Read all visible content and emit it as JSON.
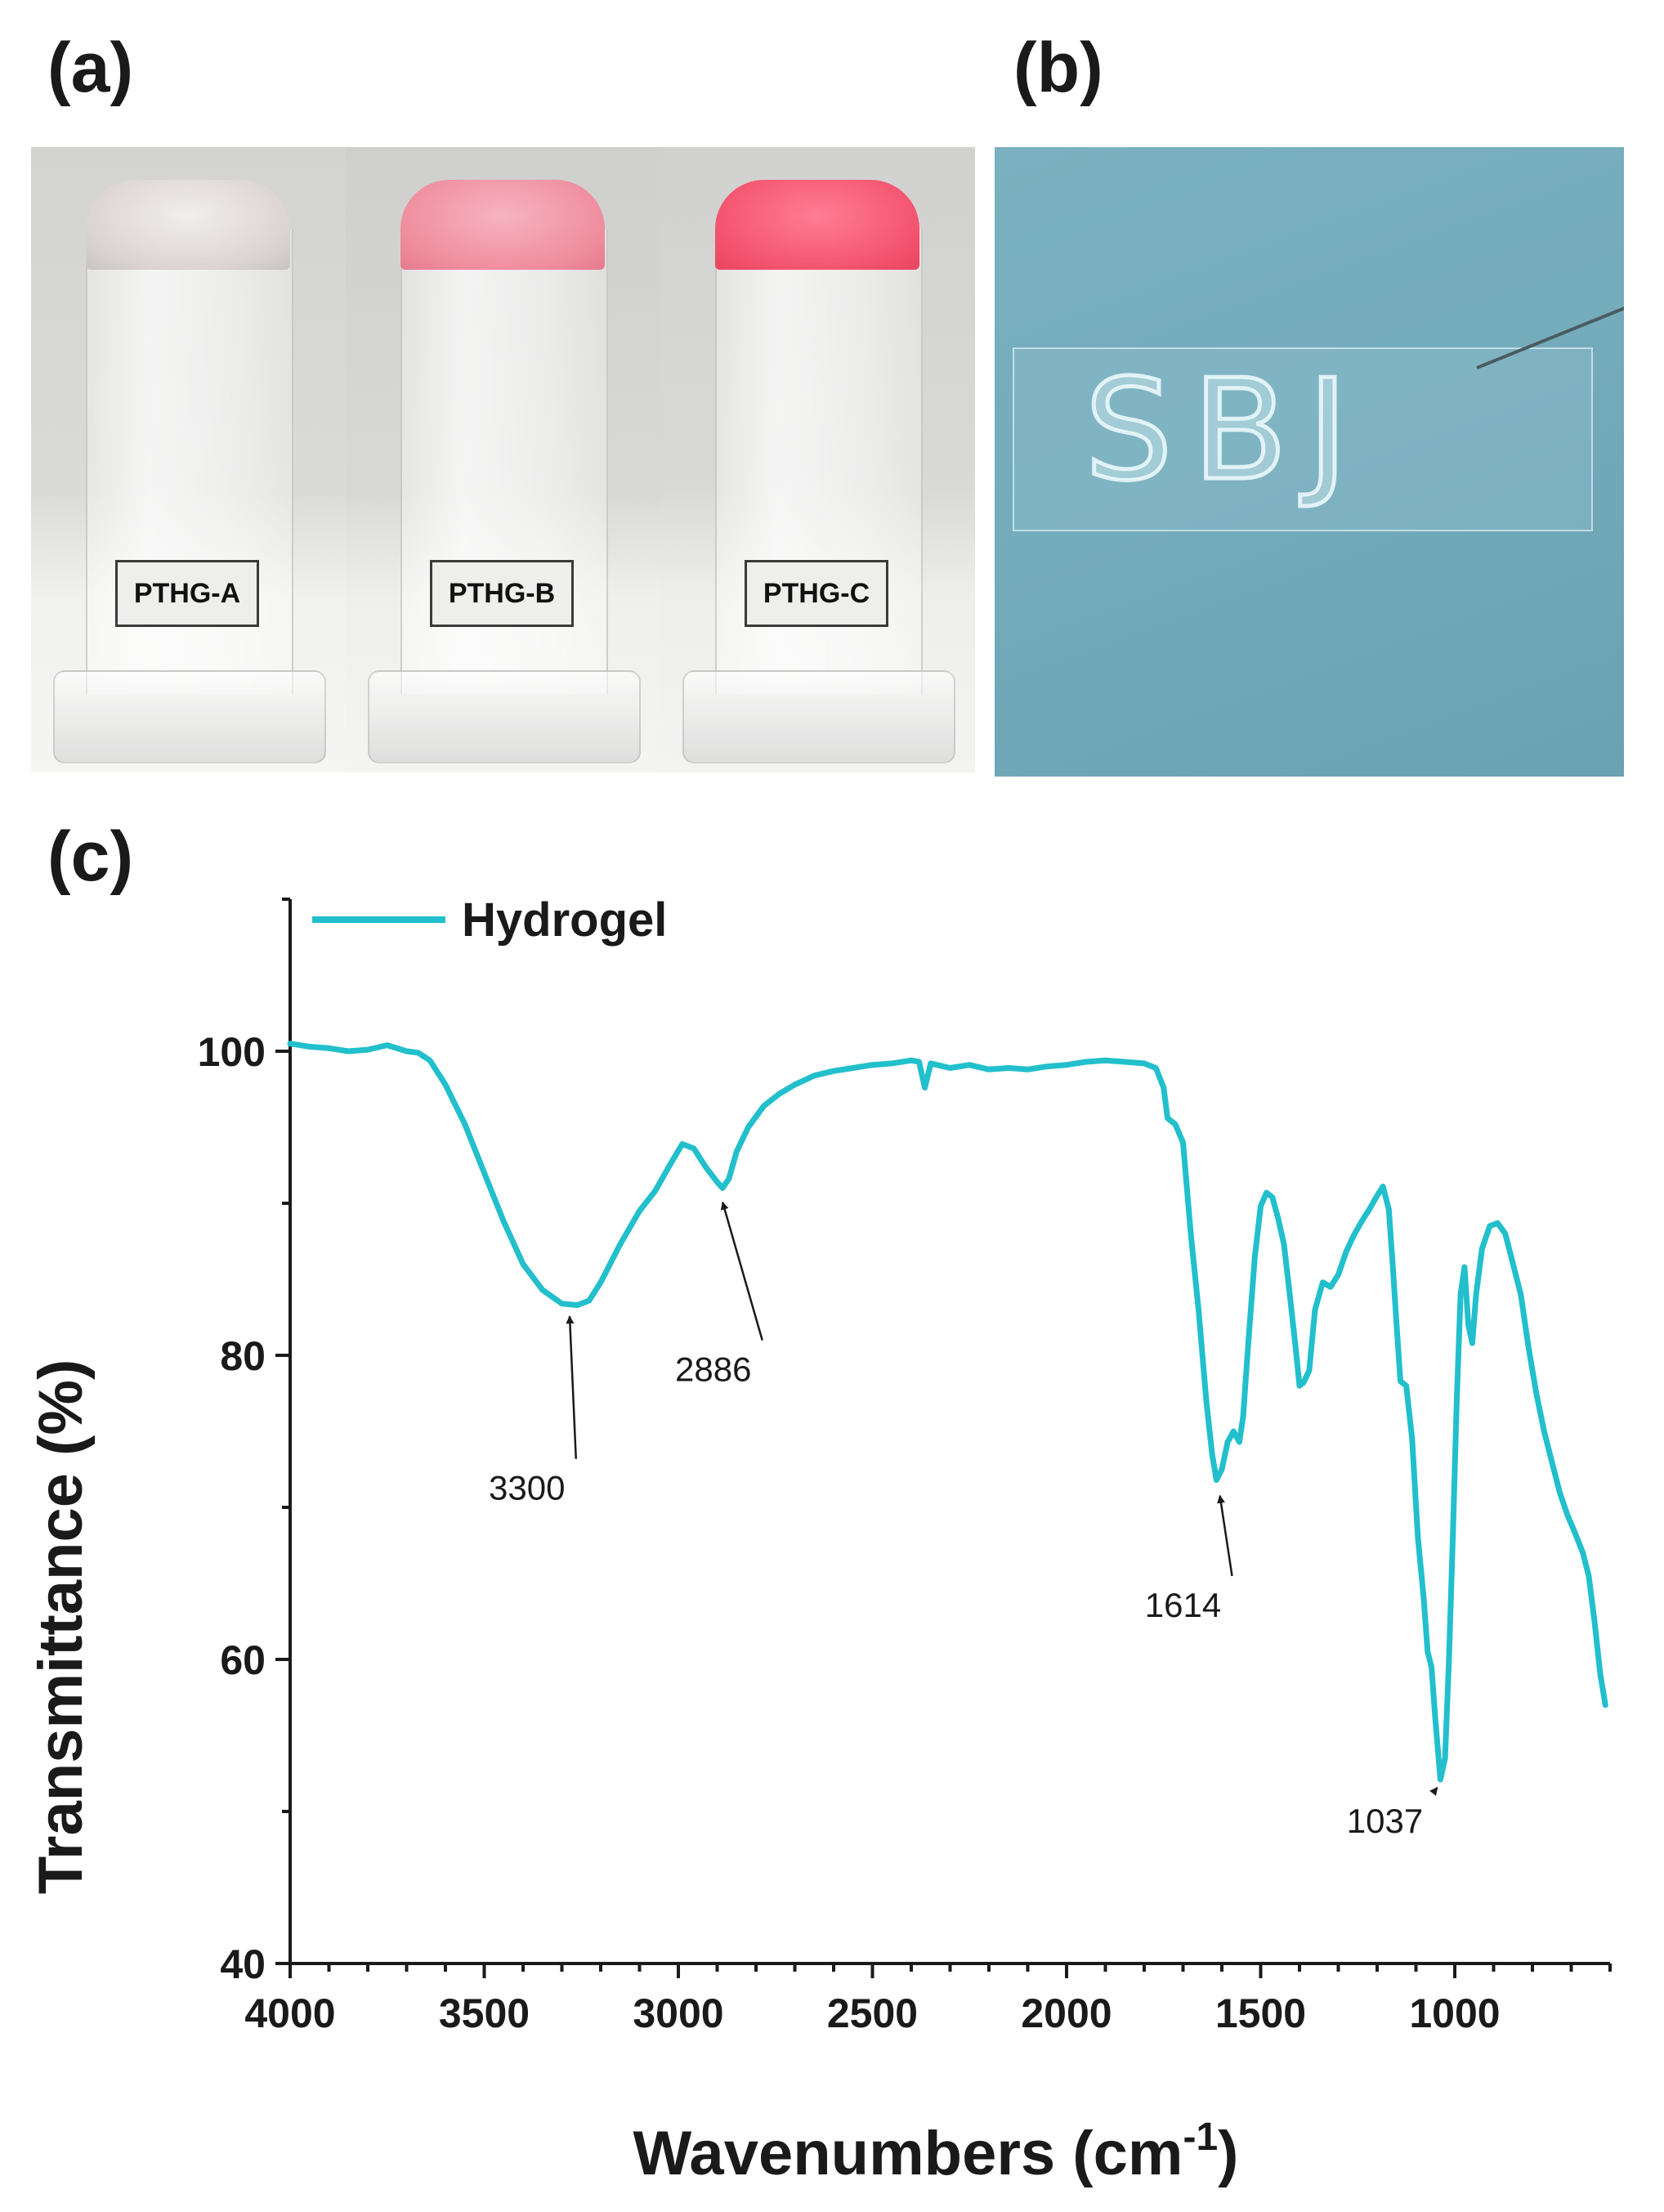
{
  "panels": {
    "a": {
      "letter": "(a)",
      "vials": [
        {
          "label": "PTHG-A",
          "cap_color": "#d8d2d2"
        },
        {
          "label": "PTHG-B",
          "cap_color": "#ef8e9f"
        },
        {
          "label": "PTHG-C",
          "cap_color": "#f4546f"
        }
      ]
    },
    "b": {
      "letter": "(b)",
      "written_text": "SBJ"
    },
    "c": {
      "letter": "(c)"
    }
  },
  "chart_data": {
    "type": "line",
    "title": "",
    "xlabel_main": "Wavenumbers (cm",
    "xlabel_sup": "-1",
    "xlabel_end": ")",
    "ylabel": "Transmittance (%)",
    "xlim": [
      4000,
      600
    ],
    "ylim": [
      40,
      110
    ],
    "x_ticks": [
      4000,
      3500,
      3000,
      2500,
      2000,
      1500,
      1000
    ],
    "y_ticks": [
      40,
      60,
      80,
      100
    ],
    "legend": {
      "placement": "top-left"
    },
    "series": [
      {
        "name": "Hydrogel",
        "color": "#22bfcc",
        "points": [
          [
            4000,
            100.5
          ],
          [
            3950,
            100.3
          ],
          [
            3900,
            100.2
          ],
          [
            3850,
            100.0
          ],
          [
            3800,
            100.1
          ],
          [
            3750,
            100.4
          ],
          [
            3700,
            100.0
          ],
          [
            3670,
            99.9
          ],
          [
            3640,
            99.4
          ],
          [
            3600,
            97.8
          ],
          [
            3550,
            95.2
          ],
          [
            3500,
            92.0
          ],
          [
            3450,
            88.8
          ],
          [
            3400,
            86.0
          ],
          [
            3350,
            84.3
          ],
          [
            3300,
            83.4
          ],
          [
            3260,
            83.3
          ],
          [
            3230,
            83.6
          ],
          [
            3200,
            84.8
          ],
          [
            3150,
            87.3
          ],
          [
            3100,
            89.5
          ],
          [
            3060,
            90.8
          ],
          [
            3020,
            92.6
          ],
          [
            2990,
            93.9
          ],
          [
            2960,
            93.6
          ],
          [
            2930,
            92.4
          ],
          [
            2900,
            91.4
          ],
          [
            2886,
            91.0
          ],
          [
            2870,
            91.6
          ],
          [
            2850,
            93.4
          ],
          [
            2820,
            95.0
          ],
          [
            2780,
            96.4
          ],
          [
            2740,
            97.2
          ],
          [
            2700,
            97.8
          ],
          [
            2650,
            98.4
          ],
          [
            2600,
            98.7
          ],
          [
            2550,
            98.9
          ],
          [
            2500,
            99.1
          ],
          [
            2450,
            99.2
          ],
          [
            2400,
            99.4
          ],
          [
            2380,
            99.3
          ],
          [
            2365,
            97.6
          ],
          [
            2350,
            99.2
          ],
          [
            2300,
            98.9
          ],
          [
            2250,
            99.1
          ],
          [
            2200,
            98.8
          ],
          [
            2150,
            98.9
          ],
          [
            2100,
            98.8
          ],
          [
            2050,
            99.0
          ],
          [
            2000,
            99.1
          ],
          [
            1950,
            99.3
          ],
          [
            1900,
            99.4
          ],
          [
            1850,
            99.3
          ],
          [
            1800,
            99.2
          ],
          [
            1770,
            98.9
          ],
          [
            1750,
            97.6
          ],
          [
            1740,
            95.6
          ],
          [
            1720,
            95.2
          ],
          [
            1700,
            94.0
          ],
          [
            1680,
            88.0
          ],
          [
            1660,
            83.0
          ],
          [
            1640,
            77.0
          ],
          [
            1625,
            73.5
          ],
          [
            1614,
            71.8
          ],
          [
            1600,
            72.5
          ],
          [
            1585,
            74.3
          ],
          [
            1570,
            75.0
          ],
          [
            1555,
            74.3
          ],
          [
            1545,
            76.0
          ],
          [
            1530,
            81.5
          ],
          [
            1515,
            86.5
          ],
          [
            1500,
            89.8
          ],
          [
            1485,
            90.7
          ],
          [
            1470,
            90.4
          ],
          [
            1455,
            89.0
          ],
          [
            1440,
            87.3
          ],
          [
            1425,
            84.0
          ],
          [
            1410,
            80.5
          ],
          [
            1400,
            78.0
          ],
          [
            1390,
            78.2
          ],
          [
            1375,
            79.0
          ],
          [
            1360,
            83.0
          ],
          [
            1340,
            84.8
          ],
          [
            1320,
            84.5
          ],
          [
            1300,
            85.3
          ],
          [
            1280,
            86.8
          ],
          [
            1260,
            87.9
          ],
          [
            1240,
            88.8
          ],
          [
            1220,
            89.6
          ],
          [
            1200,
            90.5
          ],
          [
            1185,
            91.1
          ],
          [
            1170,
            89.6
          ],
          [
            1160,
            86.0
          ],
          [
            1150,
            82.0
          ],
          [
            1140,
            78.3
          ],
          [
            1125,
            78.0
          ],
          [
            1110,
            74.5
          ],
          [
            1095,
            68.0
          ],
          [
            1080,
            64.0
          ],
          [
            1070,
            60.5
          ],
          [
            1060,
            59.5
          ],
          [
            1050,
            56.0
          ],
          [
            1037,
            52.1
          ],
          [
            1025,
            53.5
          ],
          [
            1015,
            60.0
          ],
          [
            1005,
            68.0
          ],
          [
            995,
            77.0
          ],
          [
            985,
            84.0
          ],
          [
            975,
            85.8
          ],
          [
            965,
            82.0
          ],
          [
            955,
            80.8
          ],
          [
            945,
            84.0
          ],
          [
            930,
            87.0
          ],
          [
            910,
            88.5
          ],
          [
            890,
            88.7
          ],
          [
            870,
            88.0
          ],
          [
            850,
            86.0
          ],
          [
            830,
            84.0
          ],
          [
            810,
            80.5
          ],
          [
            790,
            77.5
          ],
          [
            770,
            75.0
          ],
          [
            750,
            73.0
          ],
          [
            730,
            71.0
          ],
          [
            710,
            69.5
          ],
          [
            690,
            68.3
          ],
          [
            670,
            67.0
          ],
          [
            655,
            65.5
          ],
          [
            640,
            62.5
          ],
          [
            625,
            59.0
          ],
          [
            612,
            57.0
          ]
        ]
      }
    ],
    "annotations": [
      {
        "label": "3300",
        "target": [
          3280,
          83.0
        ],
        "text_at": [
          3390,
          70.5
        ]
      },
      {
        "label": "2886",
        "target": [
          2886,
          90.5
        ],
        "text_at": [
          2910,
          78.3
        ]
      },
      {
        "label": "1614",
        "target": [
          1605,
          71.2
        ],
        "text_at": [
          1700,
          62.8
        ]
      },
      {
        "label": "1037",
        "target": [
          1045,
          52.0
        ],
        "text_at": [
          1180,
          48.6
        ]
      }
    ]
  }
}
